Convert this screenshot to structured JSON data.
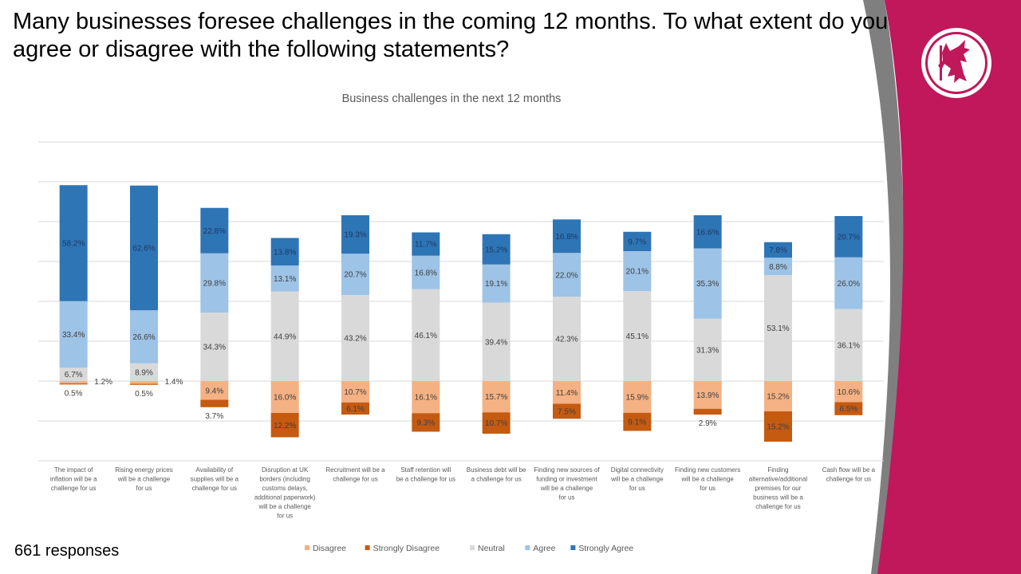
{
  "slide": {
    "title": "Many businesses foresee challenges in the coming 12 months. To what extent do you agree or disagree with the following statements?",
    "responses_label": "661 responses",
    "brand_color": "#C0185A",
    "logo_icon": "red-dragon-icon"
  },
  "chart_data": {
    "type": "bar",
    "stacked": "diverging",
    "title": "Business challenges in the next 12 months",
    "xlabel": "",
    "ylabel": "",
    "grid": true,
    "legend_position": "bottom",
    "categories": [
      "The impact of inflation will be a challenge for us",
      "Rising energy prices will be a challenge for us",
      "Availability of supplies will be a challenge for us",
      "Disruption at UK borders (including customs delays, additional paperwork) will be a challenge for us",
      "Recruitment will be a challenge for us",
      "Staff retention will be a challenge for us",
      "Business debt will be a challenge for us",
      "Finding new sources of funding or investment will be a challenge for us",
      "Digital connectivity will be a challenge for us",
      "Finding new customers will be a challenge for us",
      "Finding alternative/additional premises for our business will be a challenge for us",
      "Cash flow will be a challenge for us"
    ],
    "series": [
      {
        "name": "Disagree",
        "color": "#F4B183",
        "values": [
          1.2,
          1.4,
          9.4,
          16.0,
          10.7,
          16.1,
          15.7,
          11.4,
          15.9,
          13.9,
          15.2,
          10.6
        ]
      },
      {
        "name": "Strongly Disagree",
        "color": "#C55A11",
        "values": [
          0.5,
          0.5,
          3.7,
          12.2,
          6.1,
          9.3,
          10.7,
          7.5,
          9.1,
          2.9,
          15.2,
          6.5
        ]
      },
      {
        "name": "Neutral",
        "color": "#D9D9D9",
        "values": [
          6.7,
          8.9,
          34.3,
          44.9,
          43.2,
          46.1,
          39.4,
          42.3,
          45.1,
          31.3,
          53.1,
          36.1
        ]
      },
      {
        "name": "Agree",
        "color": "#9DC3E6",
        "values": [
          33.4,
          26.6,
          29.8,
          13.1,
          20.7,
          16.8,
          19.1,
          22.0,
          20.1,
          35.3,
          8.8,
          26.0
        ]
      },
      {
        "name": "Strongly Agree",
        "color": "#2E75B6",
        "values": [
          58.2,
          62.6,
          22.8,
          13.8,
          19.3,
          11.7,
          15.2,
          16.8,
          9.7,
          16.6,
          7.8,
          20.7
        ]
      }
    ]
  }
}
